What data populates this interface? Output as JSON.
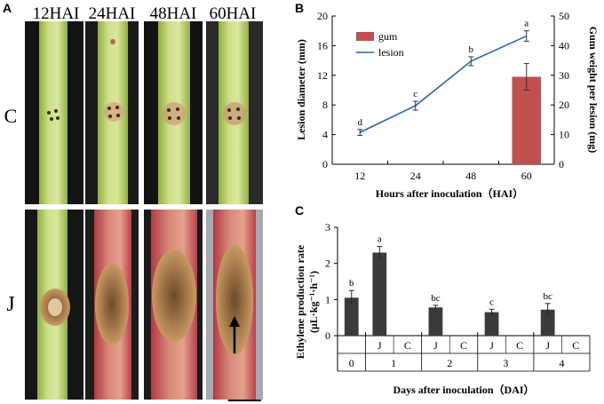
{
  "panel_a": {
    "label": "A",
    "columns": [
      "12HAI",
      "24HAI",
      "48HAI",
      "60HAI"
    ],
    "rows": [
      "C",
      "J"
    ]
  },
  "chart_data": [
    {
      "panel": "B",
      "type": "line",
      "xlabel": "Hours after inoculation（HAI）",
      "ylabel": "Lesion diameter (mm)",
      "ylabel_right": "Gum weight per lesion  (mg)",
      "categories": [
        "12",
        "24",
        "48",
        "60"
      ],
      "ylim": [
        0,
        20
      ],
      "yticks": [
        0,
        4,
        8,
        12,
        16,
        20
      ],
      "ylim_right": [
        0,
        50
      ],
      "yticks_right": [
        0,
        10,
        20,
        30,
        40,
        50
      ],
      "legend_position": "top-left",
      "series": [
        {
          "name": "lesion",
          "type": "line",
          "color": "#2a63b8",
          "values": [
            4.3,
            7.9,
            13.9,
            17.3
          ],
          "errors": [
            0.4,
            0.6,
            0.6,
            0.7
          ],
          "labels": [
            "d",
            "c",
            "b",
            "a"
          ]
        },
        {
          "name": "gum",
          "type": "bar",
          "axis": "right",
          "color": "#c0504d",
          "values": [
            null,
            null,
            null,
            29.5
          ],
          "errors": [
            null,
            null,
            null,
            4.5
          ]
        }
      ]
    },
    {
      "panel": "C",
      "type": "bar",
      "xlabel": "Days after inoculation（DAI）",
      "ylabel": "Ethylene production rate",
      "ylabel2": "(μL·kg⁻¹·h⁻¹)",
      "ylim": [
        0,
        3
      ],
      "yticks": [
        0,
        1,
        2,
        3
      ],
      "color": "#3a3a3a",
      "groups": [
        {
          "day": "0",
          "bars": [
            {
              "label": "",
              "value": 1.05,
              "error": 0.2,
              "sig": "b"
            }
          ]
        },
        {
          "day": "1",
          "bars": [
            {
              "label": "J",
              "value": 2.3,
              "error": 0.17,
              "sig": "a"
            },
            {
              "label": "C",
              "value": null
            }
          ]
        },
        {
          "day": "2",
          "bars": [
            {
              "label": "J",
              "value": 0.78,
              "error": 0.06,
              "sig": "bc"
            },
            {
              "label": "C",
              "value": null
            }
          ]
        },
        {
          "day": "3",
          "bars": [
            {
              "label": "J",
              "value": 0.65,
              "error": 0.08,
              "sig": "c"
            },
            {
              "label": "C",
              "value": null
            }
          ]
        },
        {
          "day": "4",
          "bars": [
            {
              "label": "J",
              "value": 0.72,
              "error": 0.17,
              "sig": "bc"
            },
            {
              "label": "C",
              "value": null
            }
          ]
        }
      ]
    }
  ]
}
